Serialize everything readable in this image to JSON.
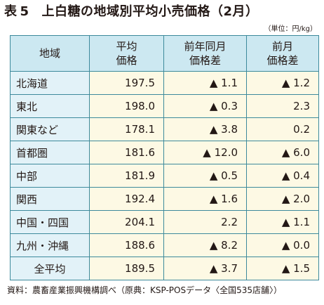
{
  "title": {
    "label": "表",
    "number": "5",
    "text": "上白糖の地域別平均小売価格（2月）"
  },
  "unit": "（単位：円/kg）",
  "table": {
    "headers": [
      {
        "line1": "地域",
        "line2": ""
      },
      {
        "line1": "平均",
        "line2": "価格"
      },
      {
        "line1": "前年同月",
        "line2": "価格差"
      },
      {
        "line1": "前月",
        "line2": "価格差"
      }
    ],
    "rows": [
      {
        "region": "北海道",
        "avg": "197.5",
        "yoy": "▲ 1.1",
        "mom": "▲ 1.2"
      },
      {
        "region": "東北",
        "avg": "198.0",
        "yoy": "▲ 0.3",
        "mom": "2.3"
      },
      {
        "region": "関東など",
        "avg": "178.1",
        "yoy": "▲ 3.8",
        "mom": "0.2"
      },
      {
        "region": "首都圏",
        "avg": "181.6",
        "yoy": "▲ 12.0",
        "mom": "▲ 6.0"
      },
      {
        "region": "中部",
        "avg": "181.9",
        "yoy": "▲ 0.5",
        "mom": "▲ 0.4"
      },
      {
        "region": "関西",
        "avg": "192.4",
        "yoy": "▲ 1.6",
        "mom": "▲ 2.0"
      },
      {
        "region": "中国・四国",
        "avg": "204.1",
        "yoy": "2.2",
        "mom": "▲ 1.1"
      },
      {
        "region": "九州・沖縄",
        "avg": "188.6",
        "yoy": "▲ 8.2",
        "mom": "▲ 0.0"
      },
      {
        "region": "全平均",
        "avg": "189.5",
        "yoy": "▲ 3.7",
        "mom": "▲ 1.5"
      }
    ]
  },
  "source": "資料：農畜産業振興機構調べ（原典：KSP-POSデータ〈全国535店舗〉）",
  "colors": {
    "border": "#3d8a9c",
    "header_bg": "#cce8f1",
    "region_bg": "#e2f2f8",
    "value_bg": "#fdf9e4"
  }
}
